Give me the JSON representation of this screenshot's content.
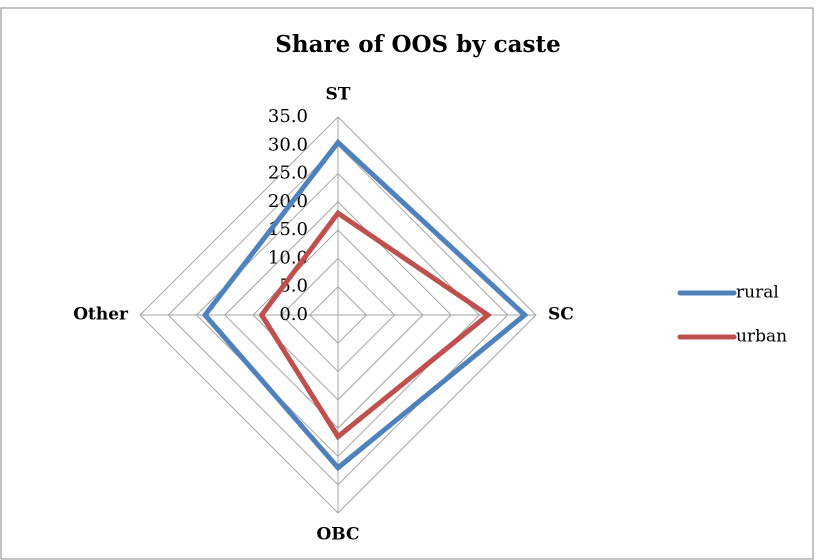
{
  "chart_data": {
    "type": "radar",
    "title": "Share of OOS by caste",
    "categories": [
      "ST",
      "SC",
      "OBC",
      "Other"
    ],
    "series": [
      {
        "name": "rural",
        "color": "#4f81bd",
        "values": [
          30.5,
          33,
          27,
          23.5
        ]
      },
      {
        "name": "urban",
        "color": "#c0504d",
        "values": [
          18,
          26.5,
          21.5,
          13.5
        ]
      }
    ],
    "ylim": [
      0,
      35
    ],
    "yticks": [
      {
        "value": 0,
        "label": "0.0"
      },
      {
        "value": 5,
        "label": "5.0"
      },
      {
        "value": 10,
        "label": "10.0"
      },
      {
        "value": 15,
        "label": "15.0"
      },
      {
        "value": 20,
        "label": "20.0"
      },
      {
        "value": 25,
        "label": "25.0"
      },
      {
        "value": 30,
        "label": "30.0"
      },
      {
        "value": 35,
        "label": "35.0"
      }
    ],
    "grid": true,
    "legend": "right"
  }
}
